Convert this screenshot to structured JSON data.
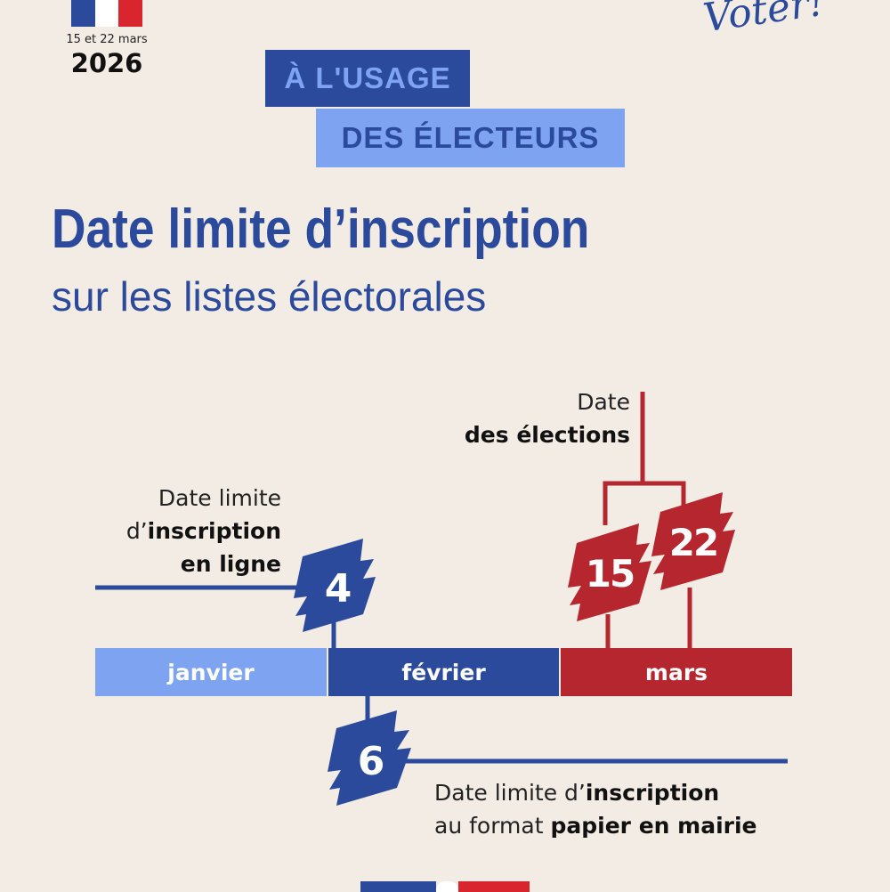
{
  "header": {
    "dates": "15 et 22 mars",
    "year": "2026",
    "logo_text": "À Voter!"
  },
  "badges": {
    "line1": "À L'USAGE",
    "line2": "DES ÉLECTEURS"
  },
  "title": "Date limite d’inscription",
  "subtitle": "sur les listes électorales",
  "timeline": {
    "months": [
      "janvier",
      "février",
      "mars"
    ],
    "online": {
      "day": "4",
      "l1": "Date limite",
      "l2a": "d’",
      "l2b": "inscription",
      "l3": "en ligne"
    },
    "paper": {
      "day": "6",
      "l1a": "Date limite d’",
      "l1b": "inscription",
      "l2a": "au format ",
      "l2b": "papier en mairie"
    },
    "elections": {
      "days": [
        "15",
        "22"
      ],
      "l1": "Date",
      "l2": "des élections"
    }
  },
  "colors": {
    "dark_blue": "#2b4a9c",
    "light_blue": "#7ea3f0",
    "red": "#b5262e",
    "background": "#f3ece5"
  }
}
